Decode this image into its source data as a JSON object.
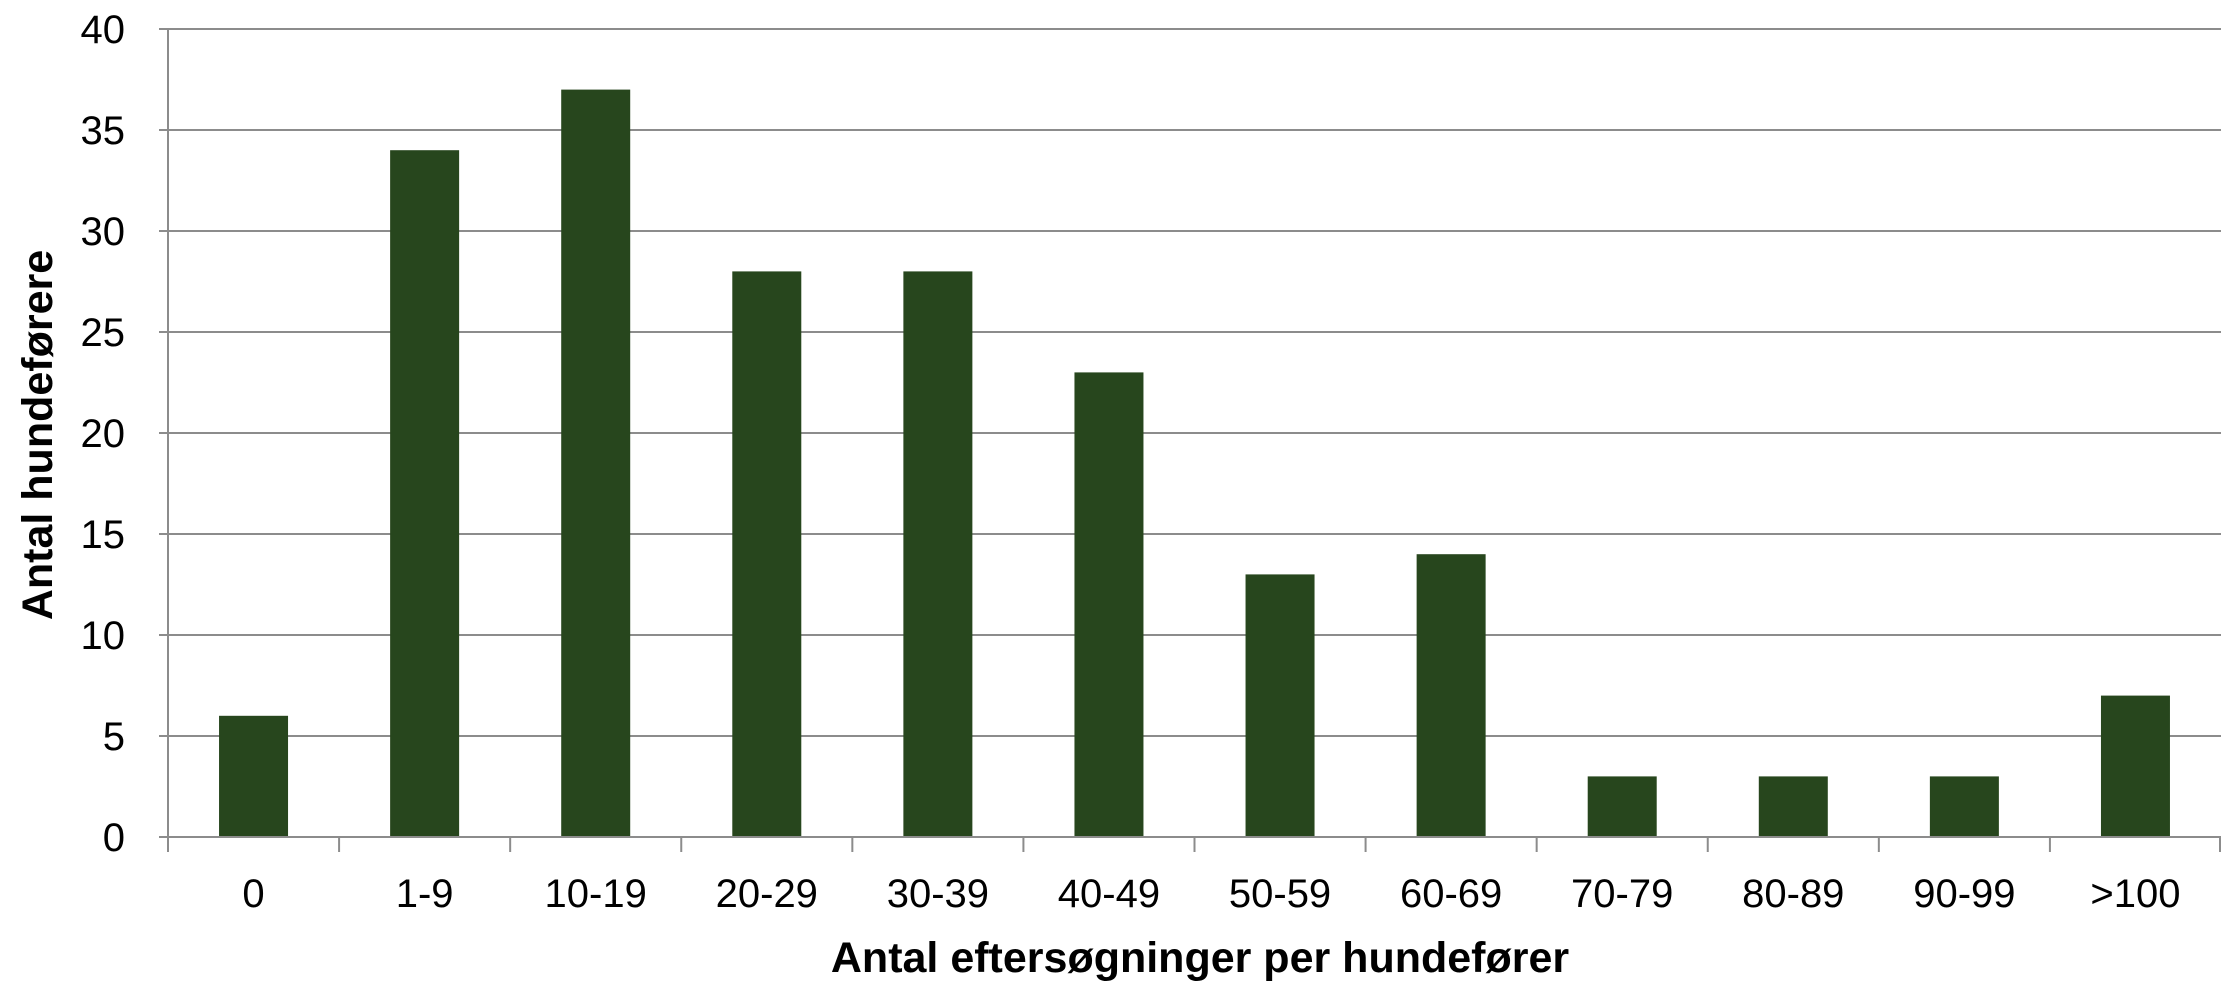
{
  "chart_data": {
    "type": "bar",
    "title": "",
    "xlabel": "Antal eftersøgninger per hundefører",
    "ylabel": "Antal hundeførere",
    "categories": [
      "0",
      "1-9",
      "10-19",
      "20-29",
      "30-39",
      "40-49",
      "50-59",
      "60-69",
      "70-79",
      "80-89",
      "90-99",
      ">100"
    ],
    "values": [
      6,
      34,
      37,
      28,
      28,
      23,
      13,
      14,
      3,
      3,
      3,
      7
    ],
    "ylim": [
      0,
      40
    ],
    "yticks": [
      "0",
      "5",
      "10",
      "15",
      "20",
      "25",
      "30",
      "35",
      "40"
    ],
    "grid": true,
    "legend": "none",
    "colors": {
      "bar": "#27461d",
      "grid": "#8c8c8c",
      "axis": "#8c8c8c"
    }
  }
}
